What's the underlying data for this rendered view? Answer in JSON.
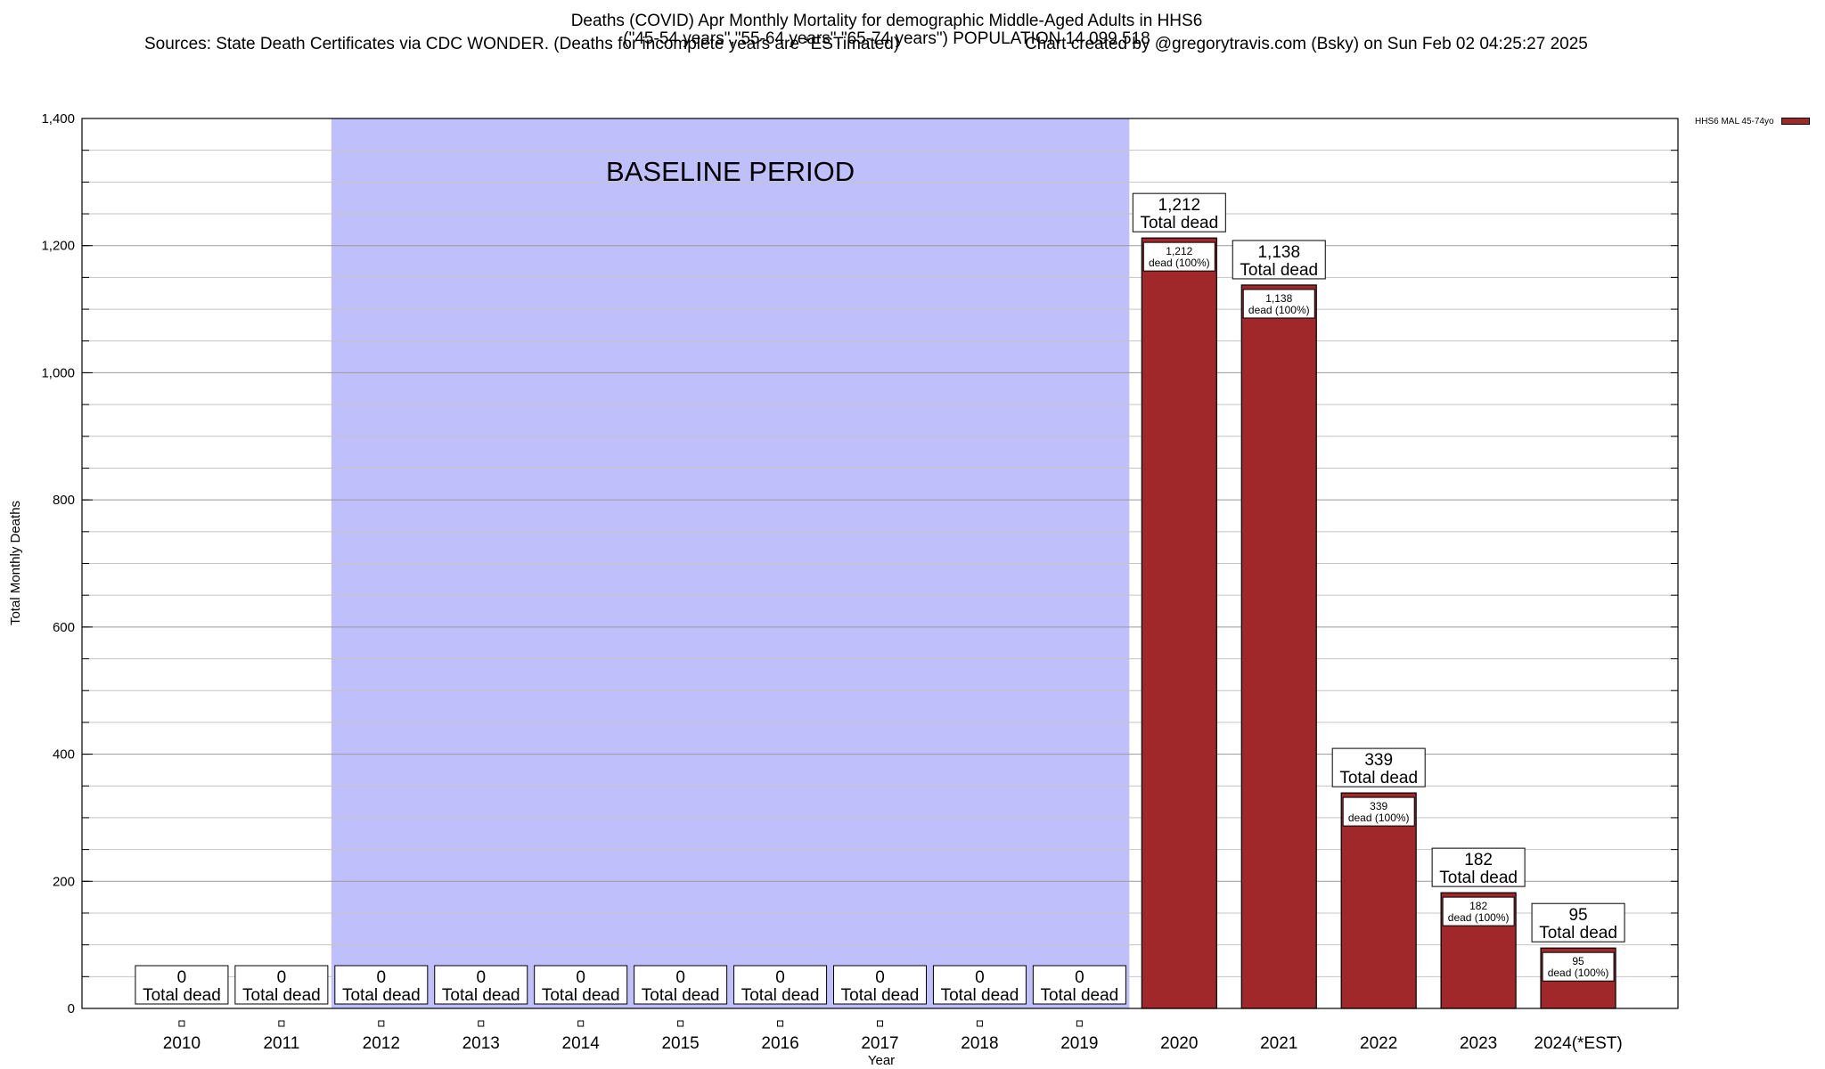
{
  "chart_data": {
    "type": "bar",
    "title": "Deaths (COVID) Apr Monthly Mortality for demographic Middle-Aged Adults in HHS6",
    "subtitle": "(\"45-54 years\",\"55-64 years\",\"65-74 years\") POPULATION 14,099,518",
    "source_note": "Sources: State Death Certificates via CDC WONDER. (Deaths for incomplete years are *ESTimated)",
    "credit": "Chart created by @gregorytravis.com (Bsky) on Sun Feb 02 04:25:27 2025",
    "xlabel": "Year",
    "ylabel": "Total Monthly Deaths",
    "ylim": [
      0,
      1400
    ],
    "yticks": [
      "0",
      "200",
      "400",
      "600",
      "800",
      "1,000",
      "1,200",
      "1,400"
    ],
    "grid": true,
    "legend_placement": "top-right",
    "categories": [
      "2010",
      "2011",
      "2012",
      "2013",
      "2014",
      "2015",
      "2016",
      "2017",
      "2018",
      "2019",
      "2020",
      "2021",
      "2022",
      "2023",
      "2024(*EST)"
    ],
    "series": [
      {
        "name": "HHS6 MAL 45-74yo",
        "color": "#a0282a",
        "values": [
          0,
          0,
          0,
          0,
          0,
          0,
          0,
          0,
          0,
          0,
          1212,
          1138,
          339,
          182,
          95
        ]
      }
    ],
    "value_labels": [
      "0",
      "0",
      "0",
      "0",
      "0",
      "0",
      "0",
      "0",
      "0",
      "0",
      "1,212",
      "1,138",
      "339",
      "182",
      "95"
    ],
    "total_label": "Total dead",
    "inner_label_suffix": "dead (100%)",
    "baseline": {
      "label": "BASELINE PERIOD",
      "from": "2012",
      "to": "2019",
      "color": "#bfbffc"
    }
  }
}
